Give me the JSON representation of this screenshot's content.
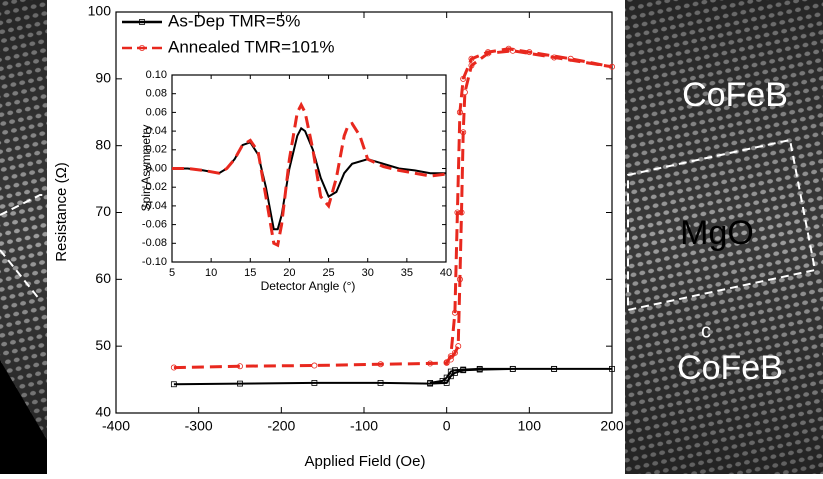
{
  "chart_data": [
    {
      "type": "line",
      "xlabel": "Applied Field (Oe)",
      "ylabel": "Resistance (Ω)",
      "xlim": [
        -400,
        200
      ],
      "xticks": [
        -400,
        -300,
        -200,
        -100,
        0,
        100,
        200
      ],
      "ylim": [
        40,
        100
      ],
      "yticks": [
        40,
        50,
        60,
        70,
        80,
        90,
        100
      ],
      "legend": "upper left",
      "series": [
        {
          "name": "As-Dep TMR=5%",
          "color": "#000000",
          "dashed": false,
          "marker": "square",
          "x": [
            -330,
            -250,
            -160,
            -80,
            -20,
            0,
            5,
            10,
            20,
            40,
            80,
            130,
            200,
            130,
            80,
            40,
            20,
            10,
            5,
            0,
            -5,
            -20
          ],
          "values": [
            44.3,
            44.4,
            44.5,
            44.5,
            44.4,
            44.5,
            45.5,
            46.0,
            46.4,
            46.5,
            46.6,
            46.6,
            46.6,
            46.6,
            46.6,
            46.6,
            46.5,
            46.4,
            46.2,
            45.3,
            44.8,
            44.5
          ]
        },
        {
          "name": "Annealed TMR=101%",
          "color": "#e8281e",
          "dashed": true,
          "marker": "circle",
          "x": [
            -330,
            -250,
            -160,
            -80,
            -20,
            0,
            5,
            10,
            13,
            16,
            20,
            30,
            50,
            75,
            100,
            150,
            200,
            130,
            80,
            50,
            30,
            22,
            20,
            18,
            16,
            14,
            10,
            5,
            0
          ],
          "values": [
            46.8,
            47.0,
            47.1,
            47.3,
            47.4,
            47.5,
            48.5,
            55,
            70,
            85,
            90,
            93,
            94,
            94.5,
            94,
            93,
            91.8,
            93.2,
            94.2,
            93.8,
            92,
            88,
            82,
            70,
            60,
            50,
            49,
            48,
            47.6
          ]
        }
      ]
    },
    {
      "type": "line",
      "xlabel": "Detector Angle (°)",
      "ylabel": "Spin Asymmetry",
      "xlim": [
        5,
        40
      ],
      "xticks": [
        5,
        10,
        15,
        20,
        25,
        30,
        35,
        40
      ],
      "ylim": [
        -0.1,
        0.1
      ],
      "yticks": [
        {
          "value": -0.1,
          "label": "-0.10"
        },
        {
          "value": -0.08,
          "label": "-0.08"
        },
        {
          "value": -0.06,
          "label": "-0.06"
        },
        {
          "value": -0.04,
          "label": "-0.04"
        },
        {
          "value": -0.02,
          "label": "-0.02"
        },
        {
          "value": 0,
          "label": "0.00"
        },
        {
          "value": 0.02,
          "label": "0.02"
        },
        {
          "value": 0.04,
          "label": "0.04"
        },
        {
          "value": 0.06,
          "label": "0.06"
        },
        {
          "value": 0.08,
          "label": "0.08"
        },
        {
          "value": 0.1,
          "label": "0.10"
        }
      ],
      "series": [
        {
          "color": "#000000",
          "dashed": false,
          "x": [
            5,
            7,
            9,
            11,
            12,
            13,
            14,
            15,
            16,
            17,
            18,
            18.5,
            19,
            20,
            21,
            21.5,
            22,
            23,
            24,
            25,
            26,
            27,
            28,
            30,
            32,
            34,
            36,
            38,
            40
          ],
          "values": [
            0,
            0,
            -0.002,
            -0.005,
            0,
            0.01,
            0.025,
            0.028,
            0.015,
            -0.02,
            -0.065,
            -0.065,
            -0.05,
            0,
            0.035,
            0.043,
            0.04,
            0.02,
            -0.01,
            -0.03,
            -0.025,
            -0.005,
            0.005,
            0.01,
            0.005,
            0,
            -0.002,
            -0.005,
            -0.005
          ]
        },
        {
          "color": "#e8281e",
          "dashed": true,
          "x": [
            5,
            7,
            9,
            11,
            12,
            13,
            14,
            15,
            16,
            17,
            18,
            18.5,
            19,
            20,
            21,
            21.5,
            22,
            23,
            24,
            25,
            26,
            27,
            27.5,
            28,
            29,
            30,
            32,
            34,
            36,
            38,
            40
          ],
          "values": [
            0,
            0,
            -0.002,
            -0.005,
            0,
            0.01,
            0.025,
            0.03,
            0.018,
            -0.03,
            -0.08,
            -0.082,
            -0.06,
            0.01,
            0.06,
            0.068,
            0.06,
            0.02,
            -0.03,
            -0.04,
            -0.01,
            0.035,
            0.046,
            0.048,
            0.035,
            0.01,
            0.002,
            -0.002,
            -0.005,
            -0.008,
            -0.006
          ]
        }
      ]
    }
  ],
  "image_labels": [
    "CoFeB",
    "MgO",
    "c",
    "CoFeB"
  ]
}
